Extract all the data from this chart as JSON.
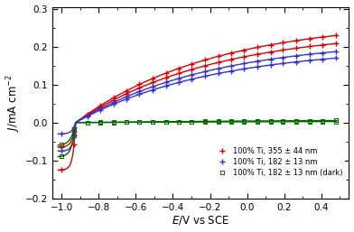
{
  "xlabel": "E/V vs SCE",
  "ylabel": "J/mA cm⁻²",
  "xlim": [
    -1.05,
    0.55
  ],
  "ylim": [
    -0.2,
    0.305
  ],
  "xticks": [
    -1.0,
    -0.8,
    -0.6,
    -0.4,
    -0.2,
    0.0,
    0.2,
    0.4
  ],
  "yticks": [
    -0.2,
    -0.1,
    0.0,
    0.1,
    0.2,
    0.3
  ],
  "background_color": "#ffffff",
  "linewidth": 1.0,
  "series": [
    {
      "label": "100% Ti, 355 ± 44 nm",
      "color": "#dd0000",
      "Voc": -0.925,
      "Jdip_fwd": -0.125,
      "Jdip_bwd": -0.065,
      "Jmax_fwd": 0.27,
      "Jmax_bwd": 0.245,
      "marker": "+",
      "dark": false
    },
    {
      "label": "100% Ti, 182 ± 13 nm",
      "color": "#3333cc",
      "Voc": -0.925,
      "Jdip_fwd": -0.075,
      "Jdip_bwd": -0.03,
      "Jmax_fwd": 0.22,
      "Jmax_bwd": 0.2,
      "marker": "+",
      "dark": false
    },
    {
      "label": "100% Ti, 182 ± 13 nm (dark)",
      "color": "#006600",
      "Voc": -0.925,
      "Jdip_fwd": -0.09,
      "Jdip_bwd": -0.06,
      "Jmax_fwd": 0.01,
      "Jmax_bwd": 0.006,
      "marker": "o",
      "dark": true
    }
  ]
}
